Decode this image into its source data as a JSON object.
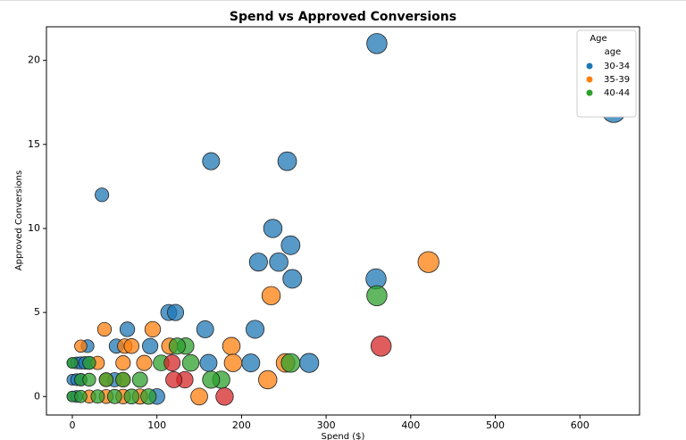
{
  "chart_data": {
    "type": "scatter",
    "title": "Spend vs Approved Conversions",
    "xlabel": "Spend ($)",
    "ylabel": "Approved Conversions",
    "xlim": [
      -30.6,
      670.5
    ],
    "ylim": [
      -1.1,
      22.0
    ],
    "xticks": [
      0,
      100,
      200,
      300,
      400,
      500,
      600
    ],
    "yticks": [
      0,
      5,
      10,
      15,
      20
    ],
    "grid": false,
    "legend_position": "upper right",
    "legend_title": "Age",
    "legend_label": "age",
    "series": [
      {
        "name": "30-34",
        "color": "#1f77b4",
        "x": [
          360,
          640,
          35,
          164,
          254,
          237,
          258,
          220,
          244,
          260,
          359,
          65,
          157,
          216,
          114,
          122,
          280,
          211,
          161,
          92,
          52,
          18,
          0,
          5,
          10,
          15,
          20,
          0,
          5,
          10,
          0,
          5,
          100,
          50
        ],
        "values": [
          21,
          17,
          12,
          14,
          14,
          10,
          9,
          8,
          8,
          7,
          7,
          4,
          4,
          4,
          5,
          5,
          2,
          2,
          2,
          3,
          3,
          3,
          2,
          2,
          2,
          2,
          2,
          1,
          1,
          1,
          0,
          0,
          0,
          1
        ],
        "sizes": [
          360,
          640,
          35,
          164,
          254,
          237,
          258,
          220,
          244,
          260,
          359,
          65,
          157,
          216,
          114,
          122,
          280,
          211,
          161,
          92,
          52,
          18,
          0,
          5,
          10,
          15,
          20,
          0,
          5,
          10,
          0,
          5,
          100,
          50
        ]
      },
      {
        "name": "35-39",
        "color": "#ff7f0e",
        "x": [
          421,
          235,
          38,
          95,
          62,
          70,
          115,
          188,
          10,
          190,
          252,
          231,
          150,
          30,
          60,
          85,
          20,
          40,
          60,
          80,
          40,
          60
        ],
        "values": [
          8,
          6,
          4,
          4,
          3,
          3,
          3,
          3,
          3,
          2,
          2,
          1,
          0,
          2,
          2,
          2,
          0,
          0,
          0,
          0,
          1,
          1
        ],
        "sizes": [
          421,
          235,
          38,
          95,
          62,
          70,
          115,
          188,
          10,
          190,
          252,
          231,
          150,
          30,
          60,
          85,
          20,
          40,
          60,
          80,
          40,
          60
        ]
      },
      {
        "name": "40-44",
        "color": "#2ca02c",
        "x": [
          360,
          258,
          134,
          124,
          140,
          105,
          176,
          164,
          0,
          10,
          30,
          50,
          70,
          90,
          10,
          20,
          40,
          60,
          80,
          20,
          0
        ],
        "values": [
          6,
          2,
          3,
          3,
          2,
          2,
          1,
          1,
          0,
          0,
          0,
          0,
          0,
          0,
          1,
          1,
          1,
          1,
          1,
          2,
          2
        ],
        "sizes": [
          360,
          258,
          134,
          124,
          140,
          105,
          176,
          164,
          0,
          10,
          30,
          50,
          70,
          90,
          10,
          20,
          40,
          60,
          80,
          20,
          0
        ]
      },
      {
        "color": "#d62728",
        "x": [
          365,
          180,
          118,
          133,
          120
        ],
        "values": [
          3,
          0,
          2,
          1,
          1
        ],
        "sizes": [
          365,
          180,
          118,
          133,
          120
        ]
      }
    ]
  }
}
